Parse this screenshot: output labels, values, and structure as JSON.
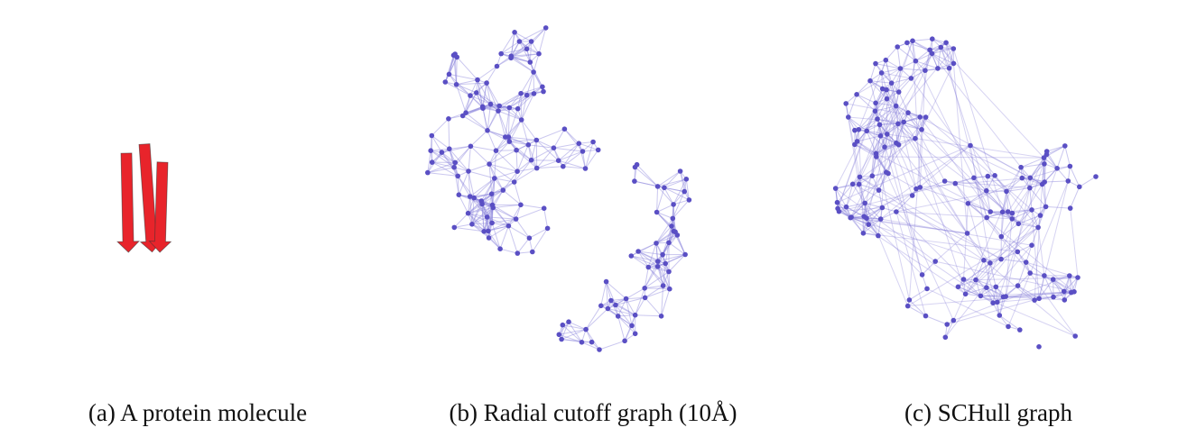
{
  "colors": {
    "graph_node": "#5a4fc4",
    "graph_edge": "#8a82db",
    "protein_red": "#e8242b",
    "protein_blue": "#1c25d4",
    "protein_orange": "#e48a4a",
    "protein_gray": "#9a9a9a"
  },
  "panels": [
    {
      "id": "a",
      "caption": "(a) A protein molecule",
      "icon": "protein-ribbon-illustration"
    },
    {
      "id": "b",
      "caption": "(b) Radial cutoff graph (10Å)",
      "icon": "radial-cutoff-graph"
    },
    {
      "id": "c",
      "caption": "(c) SCHull graph",
      "icon": "schull-graph"
    }
  ]
}
